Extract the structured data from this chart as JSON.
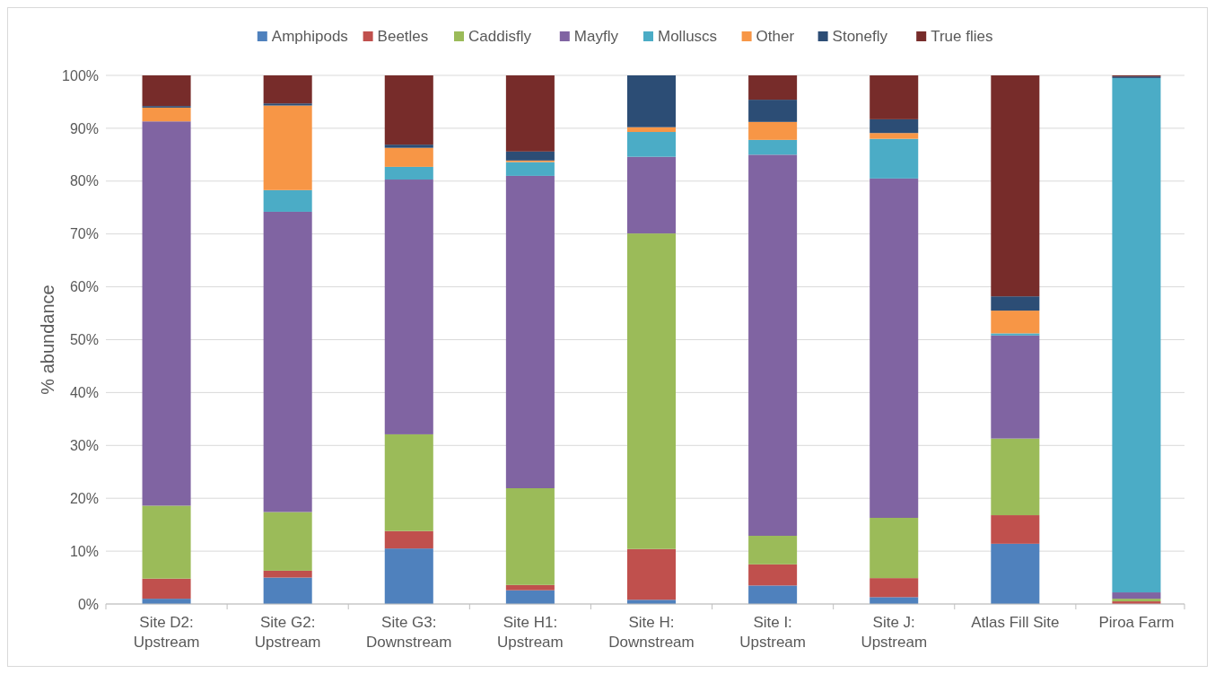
{
  "chart_data": {
    "type": "bar",
    "stacked": true,
    "ylabel": "% abundance",
    "categories": [
      "Site D2:\nUpstream",
      "Site G2:\nUpstream",
      "Site G3:\nDownstream",
      "Site H1:\nUpstream",
      "Site H:\nDownstream",
      "Site I:\nUpstream",
      "Site J:\nUpstream",
      "Atlas Fill Site",
      "Piroa Farm"
    ],
    "series": [
      {
        "name": "Amphipods",
        "color": "#4f81bd",
        "values": [
          1.0,
          5.0,
          10.5,
          2.6,
          0.8,
          3.5,
          1.3,
          11.4,
          0
        ]
      },
      {
        "name": "Beetles",
        "color": "#c0504d",
        "values": [
          3.8,
          1.3,
          3.3,
          1.0,
          9.6,
          4.0,
          3.6,
          5.4,
          0.5
        ]
      },
      {
        "name": "Caddisfly",
        "color": "#9bbb59",
        "values": [
          13.8,
          11.1,
          18.3,
          18.3,
          59.7,
          5.4,
          11.4,
          14.5,
          0.5
        ]
      },
      {
        "name": "Mayfly",
        "color": "#8064a2",
        "values": [
          72.7,
          56.8,
          48.2,
          59.1,
          14.5,
          72.1,
          64.2,
          19.5,
          1.2
        ]
      },
      {
        "name": "Molluscs",
        "color": "#4bacc6",
        "values": [
          0,
          4.1,
          2.4,
          2.6,
          4.7,
          2.8,
          7.5,
          0.4,
          97.3
        ]
      },
      {
        "name": "Other",
        "color": "#f79646",
        "values": [
          2.6,
          16.0,
          3.6,
          0.3,
          0.9,
          3.4,
          1.1,
          4.3,
          0
        ]
      },
      {
        "name": "Stonefly",
        "color": "#2c4d75",
        "values": [
          0.3,
          0.4,
          0.6,
          1.7,
          9.8,
          4.2,
          2.6,
          2.7,
          0.3
        ]
      },
      {
        "name": "True flies",
        "color": "#772c2a",
        "values": [
          5.8,
          5.3,
          13.1,
          14.4,
          0,
          4.6,
          8.3,
          41.8,
          0.2
        ]
      }
    ],
    "ylim": [
      0,
      100
    ],
    "yticks": [
      {
        "value": 0,
        "label": "0%"
      },
      {
        "value": 10,
        "label": "10%"
      },
      {
        "value": 20,
        "label": "20%"
      },
      {
        "value": 30,
        "label": "30%"
      },
      {
        "value": 40,
        "label": "40%"
      },
      {
        "value": 50,
        "label": "50%"
      },
      {
        "value": 60,
        "label": "60%"
      },
      {
        "value": 70,
        "label": "70%"
      },
      {
        "value": 80,
        "label": "80%"
      },
      {
        "value": 90,
        "label": "90%"
      },
      {
        "value": 100,
        "label": "100%"
      }
    ],
    "grid": "y",
    "legend": "top"
  }
}
